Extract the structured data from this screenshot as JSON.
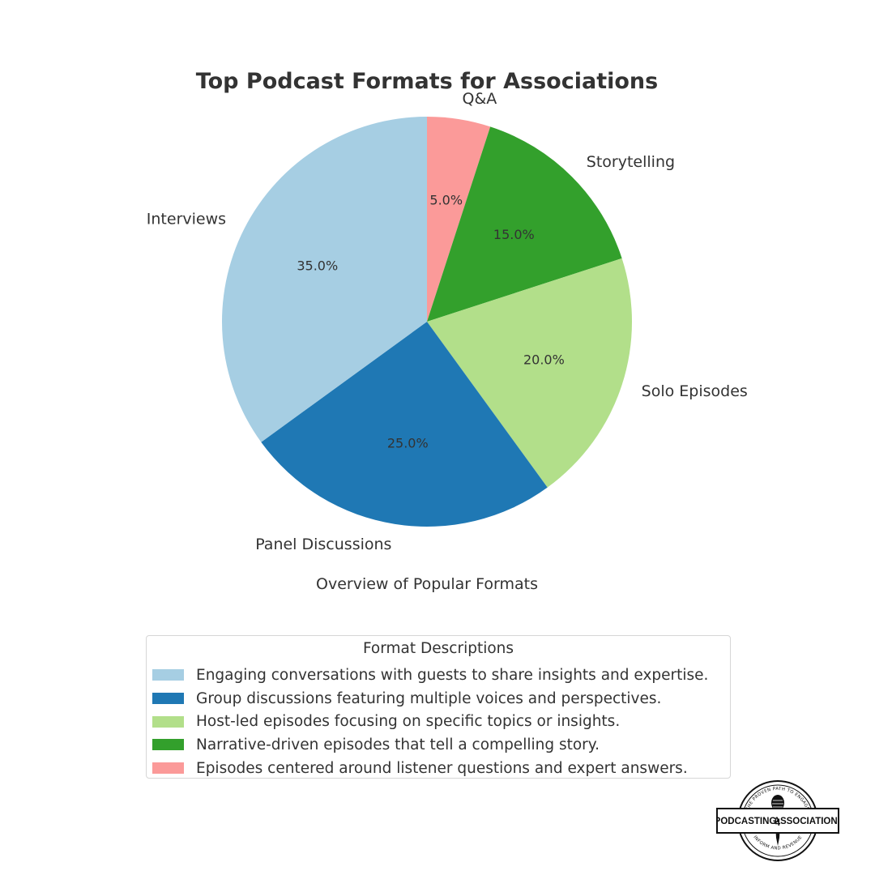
{
  "chart_data": {
    "type": "pie",
    "title": "Top Podcast Formats for Associations",
    "xlabel": "Overview of Popular Formats",
    "start_angle_deg": 90,
    "direction": "clockwise",
    "slices": [
      {
        "label": "Q&A",
        "value": 5.0,
        "pct_label": "5.0%",
        "color": "#fb9a99"
      },
      {
        "label": "Storytelling",
        "value": 15.0,
        "pct_label": "15.0%",
        "color": "#33a02c"
      },
      {
        "label": "Solo Episodes",
        "value": 20.0,
        "pct_label": "20.0%",
        "color": "#b2df8a"
      },
      {
        "label": "Panel Discussions",
        "value": 25.0,
        "pct_label": "25.0%",
        "color": "#1f78b4"
      },
      {
        "label": "Interviews",
        "value": 35.0,
        "pct_label": "35.0%",
        "color": "#a6cee3"
      }
    ],
    "legend": {
      "title": "Format Descriptions",
      "placement": "bottom-center",
      "entries": [
        {
          "label": "Engaging conversations with guests to share insights and expertise.",
          "color": "#a6cee3"
        },
        {
          "label": "Group discussions featuring multiple voices and perspectives.",
          "color": "#1f78b4"
        },
        {
          "label": "Host-led episodes focusing on specific topics or insights.",
          "color": "#b2df8a"
        },
        {
          "label": "Narrative-driven episodes that tell a compelling story.",
          "color": "#33a02c"
        },
        {
          "label": "Episodes centered around listener questions and expert answers.",
          "color": "#fb9a99"
        }
      ]
    }
  },
  "logo": {
    "name_left": "PODCASTING",
    "name_number": "4",
    "name_right": "ASSOCIATIONS",
    "tagline_top": "THE PROVEN PATH TO ENGAGE",
    "tagline_bottom": "INFORM AND REVENUE",
    "icon": "microphone-icon"
  }
}
